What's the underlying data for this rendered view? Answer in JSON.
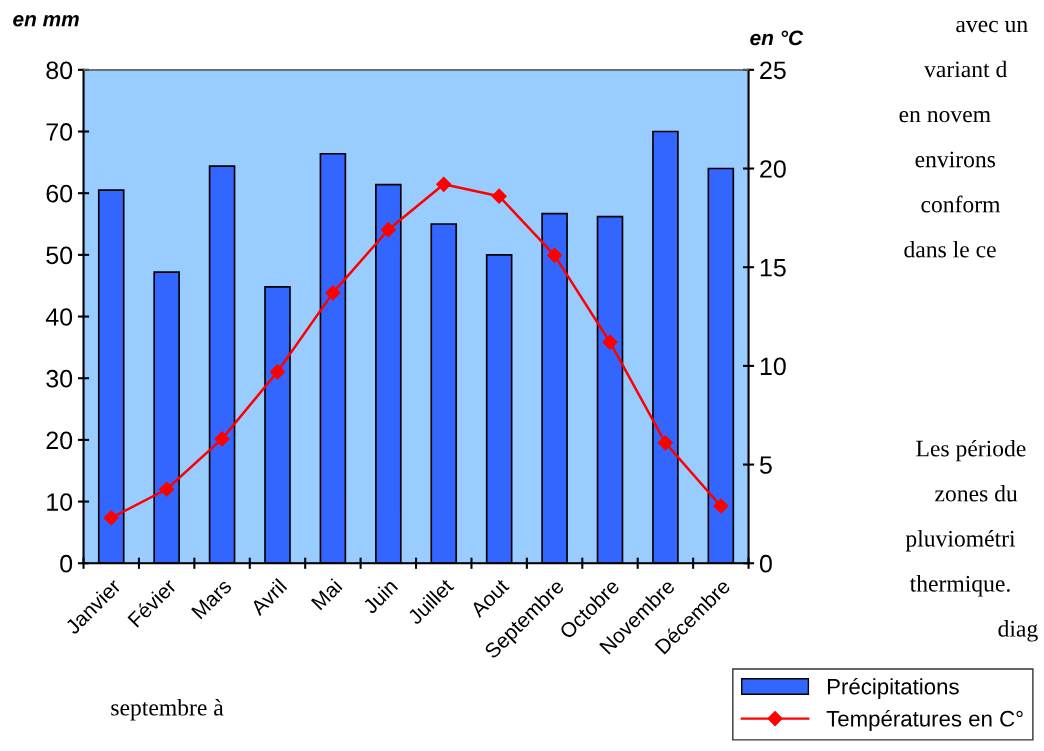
{
  "chart_data": {
    "type": "bar",
    "ylabel": "en mm",
    "y2label": "en °C",
    "categories": [
      "Janvier",
      "Févier",
      "Mars",
      "Avril",
      "Mai",
      "Juin",
      "Juillet",
      "Aout",
      "Septembre",
      "Octobre",
      "Novembre",
      "Décembre"
    ],
    "series": [
      {
        "name": "Précipitations",
        "color": "#3366ff",
        "values": [
          60.5,
          47.2,
          64.4,
          44.8,
          66.4,
          61.4,
          55.0,
          50.0,
          56.7,
          56.2,
          70.0,
          64.0
        ]
      },
      {
        "name": "Températures en C°",
        "type": "line",
        "axis": "y2",
        "color": "#ff0000",
        "marker": "diamond",
        "values": [
          2.3,
          3.75,
          6.3,
          9.7,
          13.7,
          16.9,
          19.2,
          18.6,
          15.6,
          11.2,
          6.1,
          2.9
        ]
      }
    ],
    "ylim": [
      0,
      80
    ],
    "yticks": [
      0,
      10,
      20,
      30,
      40,
      50,
      60,
      70,
      80
    ],
    "y2lim": [
      0,
      25
    ],
    "y2ticks": [
      0,
      5,
      10,
      15,
      20,
      25
    ],
    "grid": false,
    "legend": "bottom right",
    "annotations": [
      "avec un",
      "variant d",
      "en novem",
      "environs",
      "conform",
      "dans le ce",
      "Les période",
      "zones du",
      "pluviométri",
      "thermique.",
      "diag",
      "septembre à"
    ]
  }
}
